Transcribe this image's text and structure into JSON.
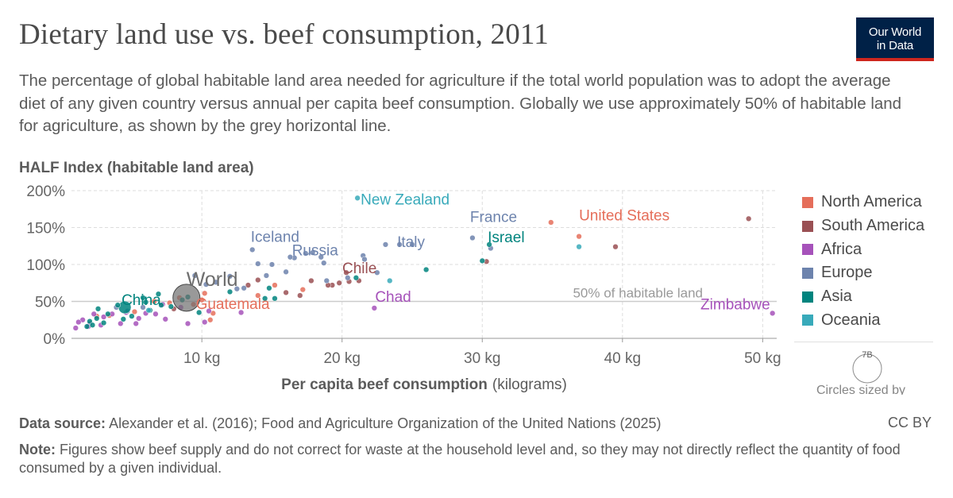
{
  "header": {
    "title": "Dietary land use vs. beef consumption, 2011",
    "subtitle": "The percentage of global habitable land area needed for agriculture if the total world population was to adopt the average diet of any given country versus annual per capita beef consumption. Globally we use approximately 50% of habitable land for agriculture, as shown by the grey horizontal line."
  },
  "logo": {
    "line1": "Our World",
    "line2": "in Data"
  },
  "chart_data": {
    "type": "scatter",
    "title": "Dietary land use vs. beef consumption, 2011",
    "xlabel_bold": "Per capita beef consumption",
    "xlabel_unit": "(kilograms)",
    "ylabel": "HALF Index (habitable land area)",
    "xlim": [
      0.7,
      51
    ],
    "ylim": [
      0,
      200
    ],
    "x_ticks": [
      10,
      20,
      30,
      40,
      50
    ],
    "x_tick_labels": [
      "10 kg",
      "20 kg",
      "30 kg",
      "40 kg",
      "50 kg"
    ],
    "y_ticks": [
      0,
      50,
      100,
      150,
      200
    ],
    "y_tick_labels": [
      "0%",
      "50%",
      "100%",
      "150%",
      "200%"
    ],
    "grid": true,
    "reference_line": {
      "y": 50,
      "label": "50% of habitable land"
    },
    "colors": {
      "North America": "#e56e5a",
      "South America": "#9a5054",
      "Africa": "#a652ba",
      "Europe": "#6d83ad",
      "Asia": "#00847e",
      "Oceania": "#38aaba",
      "World": "#6e6e6e"
    },
    "legend": {
      "position": "right",
      "entries": [
        "North America",
        "South America",
        "Africa",
        "Europe",
        "Asia",
        "Oceania"
      ]
    },
    "size_legend": {
      "value_label": "7B",
      "title": "Circles sized by"
    },
    "labeled_points": [
      {
        "name": "New Zealand",
        "region": "Oceania",
        "x": 21.1,
        "y": 190
      },
      {
        "name": "United States",
        "region": "North America",
        "x": 36.9,
        "y": 138
      },
      {
        "name": "Iceland",
        "region": "Europe",
        "x": 13.6,
        "y": 120
      },
      {
        "name": "Italy",
        "region": "Europe",
        "x": 24.1,
        "y": 127
      },
      {
        "name": "France",
        "region": "Europe",
        "x": 29.3,
        "y": 136
      },
      {
        "name": "Israel",
        "region": "Asia",
        "x": 30.5,
        "y": 127
      },
      {
        "name": "Russia",
        "region": "Europe",
        "x": 16.6,
        "y": 109
      },
      {
        "name": "Chile",
        "region": "South America",
        "x": 20.3,
        "y": 89
      },
      {
        "name": "Chad",
        "region": "Africa",
        "x": 22.3,
        "y": 41
      },
      {
        "name": "Zimbabwe",
        "region": "Africa",
        "x": 50.7,
        "y": 34
      },
      {
        "name": "China",
        "region": "Asia",
        "x": 4.5,
        "y": 42
      },
      {
        "name": "World",
        "region": "World",
        "x": 8.9,
        "y": 55
      },
      {
        "name": "Guatemala",
        "region": "North America",
        "x": 9.4,
        "y": 46
      }
    ],
    "series": [
      {
        "name": "North America",
        "points": [
          [
            34.9,
            157
          ],
          [
            36.9,
            138
          ],
          [
            9.4,
            46
          ],
          [
            10.2,
            61
          ],
          [
            5.2,
            36
          ],
          [
            6.6,
            50
          ],
          [
            7.7,
            48
          ],
          [
            14.0,
            58
          ],
          [
            17.2,
            66
          ],
          [
            10.8,
            34
          ],
          [
            10.6,
            25
          ],
          [
            2.5,
            30
          ],
          [
            3.4,
            31
          ],
          [
            8.4,
            55
          ],
          [
            10.0,
            52
          ],
          [
            15.2,
            72
          ]
        ]
      },
      {
        "name": "South America",
        "points": [
          [
            49.0,
            162
          ],
          [
            39.5,
            124
          ],
          [
            20.3,
            89
          ],
          [
            19.3,
            72
          ],
          [
            19.0,
            72
          ],
          [
            14.0,
            79
          ],
          [
            16.0,
            62
          ],
          [
            17.8,
            78
          ],
          [
            19.8,
            75
          ],
          [
            21.2,
            78
          ],
          [
            17.0,
            58
          ],
          [
            8.0,
            40
          ],
          [
            20.5,
            77
          ],
          [
            30.3,
            104
          ],
          [
            13.3,
            72
          ]
        ]
      },
      {
        "name": "Africa",
        "points": [
          [
            50.7,
            34
          ],
          [
            22.3,
            41
          ],
          [
            10.2,
            22
          ],
          [
            5.5,
            27
          ],
          [
            4.6,
            35
          ],
          [
            3.6,
            33
          ],
          [
            3.0,
            29
          ],
          [
            1.5,
            25
          ],
          [
            2.0,
            20
          ],
          [
            2.8,
            18
          ],
          [
            6.0,
            34
          ],
          [
            6.7,
            33
          ],
          [
            7.2,
            46
          ],
          [
            8.5,
            42
          ],
          [
            12.8,
            35
          ],
          [
            1.2,
            22
          ],
          [
            1.9,
            16
          ],
          [
            1.0,
            14
          ],
          [
            2.3,
            33
          ],
          [
            4.2,
            20
          ],
          [
            5.3,
            20
          ],
          [
            7.4,
            26
          ],
          [
            9.0,
            20
          ],
          [
            10.5,
            37
          ]
        ]
      },
      {
        "name": "Europe",
        "points": [
          [
            24.1,
            127
          ],
          [
            29.3,
            136
          ],
          [
            13.6,
            120
          ],
          [
            16.6,
            109
          ],
          [
            21.5,
            112
          ],
          [
            21.6,
            107
          ],
          [
            23.1,
            127
          ],
          [
            25.0,
            127
          ],
          [
            30.6,
            122
          ],
          [
            16.3,
            110
          ],
          [
            17.9,
            116
          ],
          [
            17.4,
            115
          ],
          [
            18.5,
            110
          ],
          [
            18.7,
            102
          ],
          [
            15.0,
            100
          ],
          [
            14.0,
            101
          ],
          [
            16.0,
            90
          ],
          [
            12.0,
            84
          ],
          [
            9.5,
            85
          ],
          [
            11.0,
            76
          ],
          [
            10.3,
            73
          ],
          [
            12.5,
            67
          ],
          [
            13.0,
            68
          ],
          [
            14.6,
            85
          ],
          [
            18.9,
            78
          ],
          [
            20.4,
            82
          ],
          [
            22.5,
            89
          ],
          [
            3.9,
            42
          ],
          [
            4.7,
            37
          ],
          [
            5.8,
            42
          ]
        ]
      },
      {
        "name": "Asia",
        "points": [
          [
            4.5,
            42
          ],
          [
            30.5,
            127
          ],
          [
            30.0,
            105
          ],
          [
            26.0,
            93
          ],
          [
            14.5,
            54
          ],
          [
            15.2,
            54
          ],
          [
            14.8,
            68
          ],
          [
            21.0,
            82
          ],
          [
            12.0,
            63
          ],
          [
            9.0,
            56
          ],
          [
            6.0,
            49
          ],
          [
            6.9,
            60
          ],
          [
            5.8,
            55
          ],
          [
            4.0,
            45
          ],
          [
            3.3,
            33
          ],
          [
            2.0,
            23
          ],
          [
            2.5,
            27
          ],
          [
            1.8,
            16
          ],
          [
            2.2,
            18
          ],
          [
            3.0,
            21
          ],
          [
            4.4,
            26
          ],
          [
            7.8,
            43
          ],
          [
            7.1,
            45
          ],
          [
            5.0,
            30
          ],
          [
            6.3,
            38
          ],
          [
            8.6,
            52
          ],
          [
            9.8,
            35
          ],
          [
            2.6,
            40
          ]
        ]
      },
      {
        "name": "Oceania",
        "points": [
          [
            21.1,
            190
          ],
          [
            36.9,
            124
          ],
          [
            23.4,
            78
          ],
          [
            6.2,
            38
          ]
        ]
      },
      {
        "name": "World",
        "points": [
          [
            8.9,
            55
          ]
        ]
      }
    ]
  },
  "footer": {
    "source_label": "Data source:",
    "source_text": "Alexander et al. (2016); Food and Agriculture Organization of the United Nations (2025)",
    "license": "CC BY",
    "note_label": "Note:",
    "note_text": "Figures show beef supply and do not correct for waste at the household level and, so they may not directly reflect the quantity of food consumed by a given individual."
  }
}
